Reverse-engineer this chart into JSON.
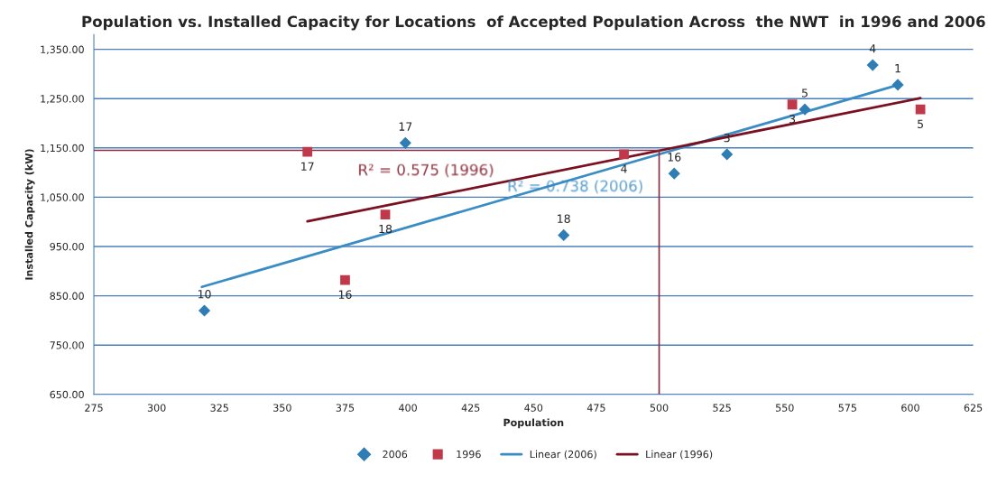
{
  "chart_data": {
    "type": "scatter",
    "title": "Population vs. Installed Capacity for Locations  of Accepted Population Across  the NWT  in 1996 and 2006",
    "xlabel": "Population",
    "ylabel": "Installed Capacity (kW)",
    "xlim": [
      275,
      625
    ],
    "xticks": [
      275,
      300,
      325,
      350,
      375,
      400,
      425,
      450,
      475,
      500,
      525,
      550,
      575,
      600,
      625
    ],
    "ylim": [
      650,
      1380
    ],
    "yticks": [
      {
        "value": 650,
        "label": "650.00"
      },
      {
        "value": 750,
        "label": "750.00"
      },
      {
        "value": 850,
        "label": "850.00"
      },
      {
        "value": 950,
        "label": "950.00"
      },
      {
        "value": 1050,
        "label": "1,050.00"
      },
      {
        "value": 1150,
        "label": "1,150.00"
      },
      {
        "value": 1250,
        "label": "1,250.00"
      },
      {
        "value": 1350,
        "label": "1,350.00"
      }
    ],
    "grid": "y",
    "legend": "bottom",
    "series": [
      {
        "name": "2006",
        "marker": "diamond",
        "color": "#2e7eb5",
        "x": [
          319,
          399,
          462,
          506,
          527,
          558,
          585,
          595
        ],
        "values": [
          820,
          1160,
          973,
          1098,
          1137,
          1228,
          1318,
          1278
        ]
      },
      {
        "name": "1996",
        "marker": "square",
        "color": "#c0394b",
        "x": [
          360,
          391,
          375,
          486,
          553,
          604
        ],
        "values": [
          1142,
          1015,
          882,
          1137,
          1238,
          1228
        ]
      },
      {
        "name": "Linear (2006)",
        "type": "line",
        "marker": "none",
        "color": "#3a8cc4",
        "x": [
          318,
          596
        ],
        "values": [
          868,
          1279
        ]
      },
      {
        "name": "Linear (1996)",
        "type": "line",
        "marker": "none",
        "color": "#7a1020",
        "x": [
          360,
          604
        ],
        "values": [
          1001,
          1251
        ]
      },
      {
        "type": "line",
        "marker": "none",
        "color": "#8b2a45",
        "x": [
          275,
          500,
          500
        ],
        "values": [
          1145,
          1145,
          650
        ]
      }
    ],
    "annotations": [
      "R² = 0.738 (2006)",
      "R² = 0.575 (1996)",
      {
        "text": "10",
        "x": 319,
        "y": 820
      },
      {
        "text": "17",
        "x": 399,
        "y": 1160
      },
      {
        "text": "18",
        "x": 462,
        "y": 973
      },
      {
        "text": "16",
        "x": 506,
        "y": 1098
      },
      {
        "text": "3",
        "x": 527,
        "y": 1137
      },
      {
        "text": "5",
        "x": 558,
        "y": 1228
      },
      {
        "text": "4",
        "x": 585,
        "y": 1318
      },
      {
        "text": "1",
        "x": 595,
        "y": 1278
      },
      {
        "text": "17",
        "x": 360,
        "y": 1142
      },
      {
        "text": "18",
        "x": 391,
        "y": 1015
      },
      {
        "text": "16",
        "x": 375,
        "y": 882
      },
      {
        "text": "4",
        "x": 486,
        "y": 1137
      },
      {
        "text": "3",
        "x": 553,
        "y": 1238
      },
      {
        "text": "5",
        "x": 604,
        "y": 1228
      }
    ]
  }
}
